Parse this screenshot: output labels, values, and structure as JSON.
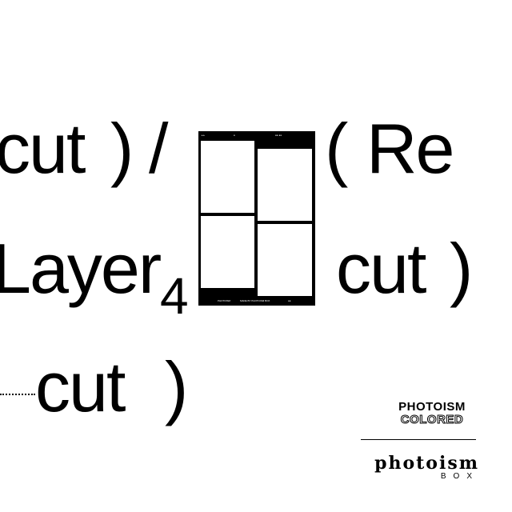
{
  "graphic": {
    "line1": {
      "left": "cut",
      "right": ")",
      "slash": "/",
      "paren": "(",
      "word": "Re"
    },
    "line2": {
      "left": "Layer",
      "subscript": "4",
      "right_word": "cut",
      "right_paren": ")"
    },
    "line3": {
      "left": "cut",
      "right": ")"
    }
  },
  "strip_labels": {
    "top_left": "▸ ▸",
    "top_mid": "●",
    "top_right": "●● ●●",
    "bottom_left": "PHOTOISM",
    "bottom_mid": "MADE BY PHOTOISM BOX",
    "bottom_right": "●●"
  },
  "brand": {
    "line1": "PHOTOISM",
    "line2": "COLORED",
    "wordmark": "photoism",
    "wordmark_sub": "BOX"
  }
}
